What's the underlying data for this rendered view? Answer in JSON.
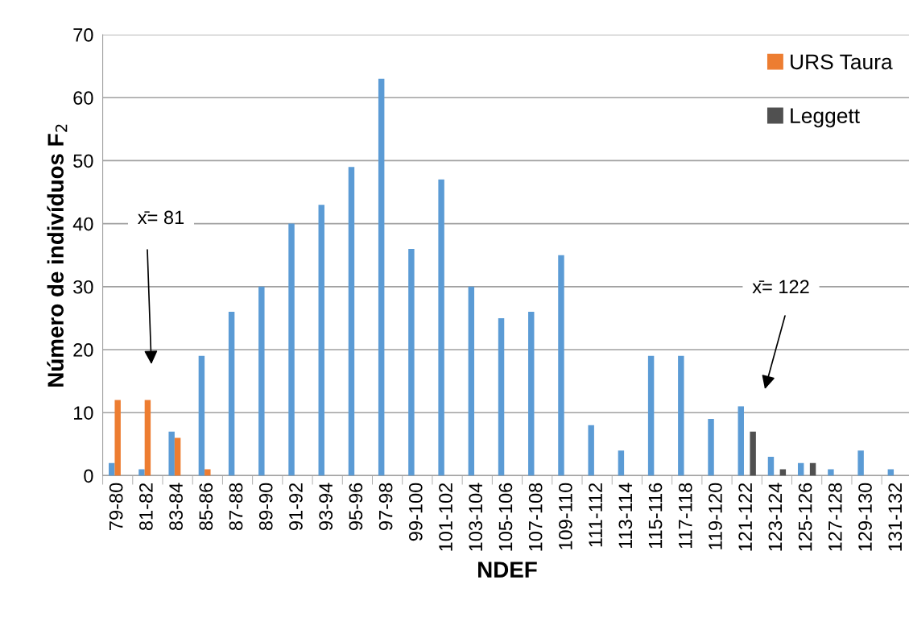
{
  "chart_data": {
    "type": "bar",
    "xlabel": "NDEF",
    "ylabel": "Número de indivíduos F$_{2}$",
    "categories": [
      "79-80",
      "81-82",
      "83-84",
      "85-86",
      "87-88",
      "89-90",
      "91-92",
      "93-94",
      "95-96",
      "97-98",
      "99-100",
      "101-102",
      "103-104",
      "105-106",
      "107-108",
      "109-110",
      "111-112",
      "113-114",
      "115-116",
      "117-118",
      "119-120",
      "121-122",
      "123-124",
      "125-126",
      "127-128",
      "129-130",
      "131-132"
    ],
    "series": [
      {
        "color": "#5b9bd5",
        "values": [
          2,
          1,
          7,
          19,
          26,
          30,
          40,
          43,
          49,
          63,
          36,
          47,
          30,
          25,
          26,
          35,
          8,
          4,
          19,
          19,
          9,
          11,
          3,
          2,
          1,
          4,
          1
        ]
      },
      {
        "name": "URS Taura",
        "color": "#ed7d31",
        "values": [
          12,
          12,
          6,
          1,
          null,
          null,
          null,
          null,
          null,
          null,
          null,
          null,
          null,
          null,
          null,
          null,
          null,
          null,
          null,
          null,
          null,
          null,
          null,
          null,
          null,
          null,
          null
        ]
      },
      {
        "name": "Leggett",
        "color": "#505050",
        "values": [
          null,
          null,
          null,
          null,
          null,
          null,
          null,
          null,
          null,
          null,
          null,
          null,
          null,
          null,
          null,
          null,
          null,
          null,
          null,
          null,
          null,
          7,
          1,
          2,
          null,
          null,
          null
        ]
      }
    ],
    "ylim": [
      0,
      70
    ],
    "yticks": [
      0,
      10,
      20,
      30,
      40,
      50,
      60,
      70
    ],
    "grid": "y",
    "legend": "top right",
    "annotations": [
      "x̄= 81",
      "x̄= 122"
    ]
  }
}
